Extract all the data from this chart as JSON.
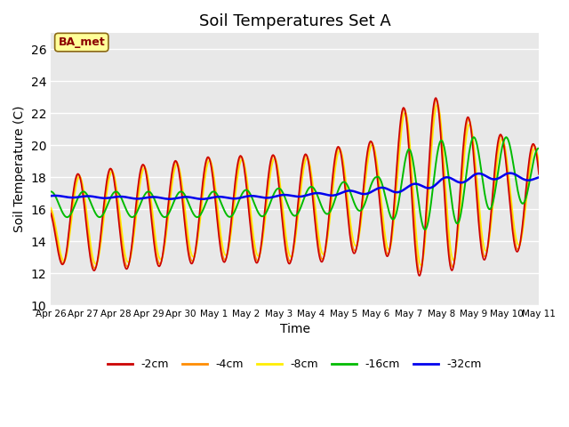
{
  "title": "Soil Temperatures Set A",
  "xlabel": "Time",
  "ylabel": "Soil Temperature (C)",
  "ylim": [
    10,
    27
  ],
  "yticks": [
    10,
    12,
    14,
    16,
    18,
    20,
    22,
    24,
    26
  ],
  "bg_color": "#e8e8e8",
  "annotation_text": "BA_met",
  "annotation_color": "#8B0000",
  "annotation_bg": "#FFFF99",
  "series": {
    "-2cm": {
      "color": "#CC0000",
      "lw": 1.2
    },
    "-4cm": {
      "color": "#FF8C00",
      "lw": 1.2
    },
    "-8cm": {
      "color": "#FFEE00",
      "lw": 1.2
    },
    "-16cm": {
      "color": "#00BB00",
      "lw": 1.4
    },
    "-32cm": {
      "color": "#0000EE",
      "lw": 1.8
    }
  },
  "x_labels": [
    "Apr 26",
    "Apr 27",
    "Apr 28",
    "Apr 29",
    "Apr 30",
    "May 1",
    "May 2",
    "May 3",
    "May 4",
    "May 5",
    "May 6",
    "May 7",
    "May 8",
    "May 9",
    "May 10",
    "May 11"
  ],
  "n_points": 721
}
